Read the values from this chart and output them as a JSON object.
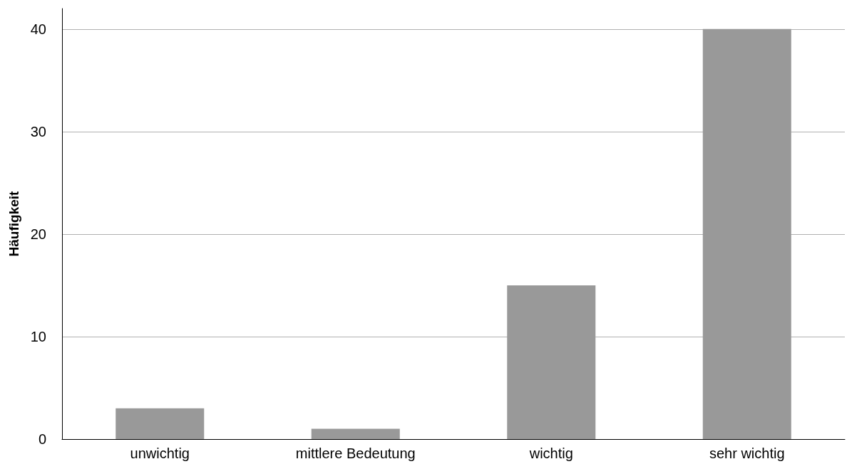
{
  "chart_data": {
    "type": "bar",
    "ylabel": "Häufigkeit",
    "categories": [
      "unwichtig",
      "mittlere Bedeutung",
      "wichtig",
      "sehr wichtig"
    ],
    "values": [
      3,
      1,
      15,
      40
    ],
    "color": "#999999",
    "ylim": [
      0,
      42
    ],
    "yticks": [
      0,
      10,
      20,
      30,
      40
    ],
    "grid": "y"
  }
}
